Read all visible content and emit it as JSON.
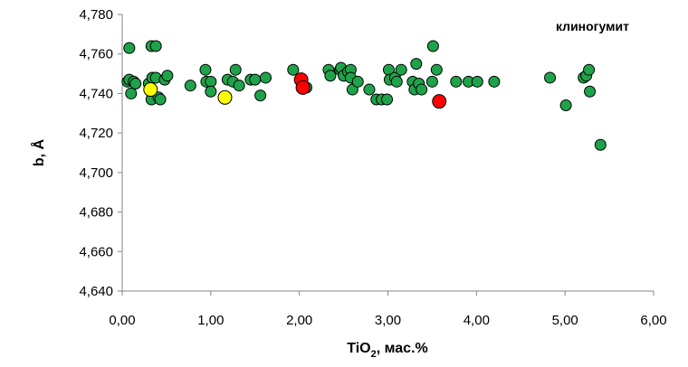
{
  "chart_data": {
    "type": "scatter",
    "title": "",
    "xlabel": "TiO",
    "xlabel_sub": "2",
    "xlabel_suffix": ", мас.%",
    "ylabel": "b, Å",
    "annotation": "клиногумит",
    "xlim": [
      0,
      6
    ],
    "ylim": [
      4.64,
      4.78
    ],
    "x_ticks": [
      0,
      1,
      2,
      3,
      4,
      5,
      6
    ],
    "x_tick_labels": [
      "0,00",
      "1,00",
      "2,00",
      "3,00",
      "4,00",
      "5,00",
      "6,00"
    ],
    "y_ticks": [
      4.64,
      4.66,
      4.68,
      4.7,
      4.72,
      4.74,
      4.76,
      4.78
    ],
    "y_tick_labels": [
      "4,640",
      "4,660",
      "4,680",
      "4,700",
      "4,720",
      "4,740",
      "4,760",
      "4,780"
    ],
    "grid": false,
    "legend": "none",
    "colors": {
      "green": "#1ea34a",
      "yellow": "#ffff00",
      "red": "#ff0000",
      "outline": "#000000"
    },
    "series": [
      {
        "color": "#1ea34a",
        "points": [
          [
            0.08,
            4.763
          ],
          [
            0.33,
            4.764
          ],
          [
            0.38,
            4.764
          ],
          [
            3.51,
            4.764
          ],
          [
            0.06,
            4.746
          ],
          [
            0.08,
            4.747
          ],
          [
            0.13,
            4.746
          ],
          [
            0.15,
            4.745
          ],
          [
            0.1,
            4.74
          ],
          [
            0.3,
            4.745
          ],
          [
            0.34,
            4.748
          ],
          [
            0.38,
            4.748
          ],
          [
            0.48,
            4.747
          ],
          [
            0.51,
            4.749
          ],
          [
            0.33,
            4.737
          ],
          [
            0.41,
            4.738
          ],
          [
            0.43,
            4.737
          ],
          [
            0.77,
            4.744
          ],
          [
            0.94,
            4.752
          ],
          [
            0.95,
            4.746
          ],
          [
            1.0,
            4.746
          ],
          [
            1.0,
            4.741
          ],
          [
            1.19,
            4.747
          ],
          [
            1.25,
            4.746
          ],
          [
            1.28,
            4.752
          ],
          [
            1.32,
            4.744
          ],
          [
            1.45,
            4.747
          ],
          [
            1.5,
            4.747
          ],
          [
            1.56,
            4.739
          ],
          [
            1.62,
            4.748
          ],
          [
            1.93,
            4.752
          ],
          [
            2.08,
            4.743
          ],
          [
            2.33,
            4.752
          ],
          [
            2.35,
            4.749
          ],
          [
            2.46,
            4.752
          ],
          [
            2.47,
            4.753
          ],
          [
            2.5,
            4.749
          ],
          [
            2.55,
            4.751
          ],
          [
            2.58,
            4.752
          ],
          [
            2.58,
            4.748
          ],
          [
            2.6,
            4.742
          ],
          [
            2.66,
            4.746
          ],
          [
            2.79,
            4.742
          ],
          [
            2.87,
            4.737
          ],
          [
            2.93,
            4.737
          ],
          [
            2.99,
            4.737
          ],
          [
            3.01,
            4.752
          ],
          [
            3.02,
            4.747
          ],
          [
            3.08,
            4.748
          ],
          [
            3.1,
            4.746
          ],
          [
            3.15,
            4.752
          ],
          [
            3.28,
            4.746
          ],
          [
            3.3,
            4.742
          ],
          [
            3.32,
            4.755
          ],
          [
            3.35,
            4.745
          ],
          [
            3.38,
            4.742
          ],
          [
            3.5,
            4.746
          ],
          [
            3.55,
            4.752
          ],
          [
            3.77,
            4.746
          ],
          [
            3.91,
            4.746
          ],
          [
            4.01,
            4.746
          ],
          [
            4.2,
            4.746
          ],
          [
            4.83,
            4.748
          ],
          [
            5.01,
            4.734
          ],
          [
            5.21,
            4.748
          ],
          [
            5.24,
            4.749
          ],
          [
            5.27,
            4.752
          ],
          [
            5.28,
            4.741
          ],
          [
            5.4,
            4.714
          ]
        ]
      },
      {
        "color": "#ffff00",
        "points": [
          [
            0.32,
            4.742
          ],
          [
            1.16,
            4.738
          ]
        ]
      },
      {
        "color": "#ff0000",
        "points": [
          [
            2.02,
            4.747
          ],
          [
            2.04,
            4.743
          ],
          [
            3.58,
            4.736
          ]
        ]
      }
    ]
  }
}
